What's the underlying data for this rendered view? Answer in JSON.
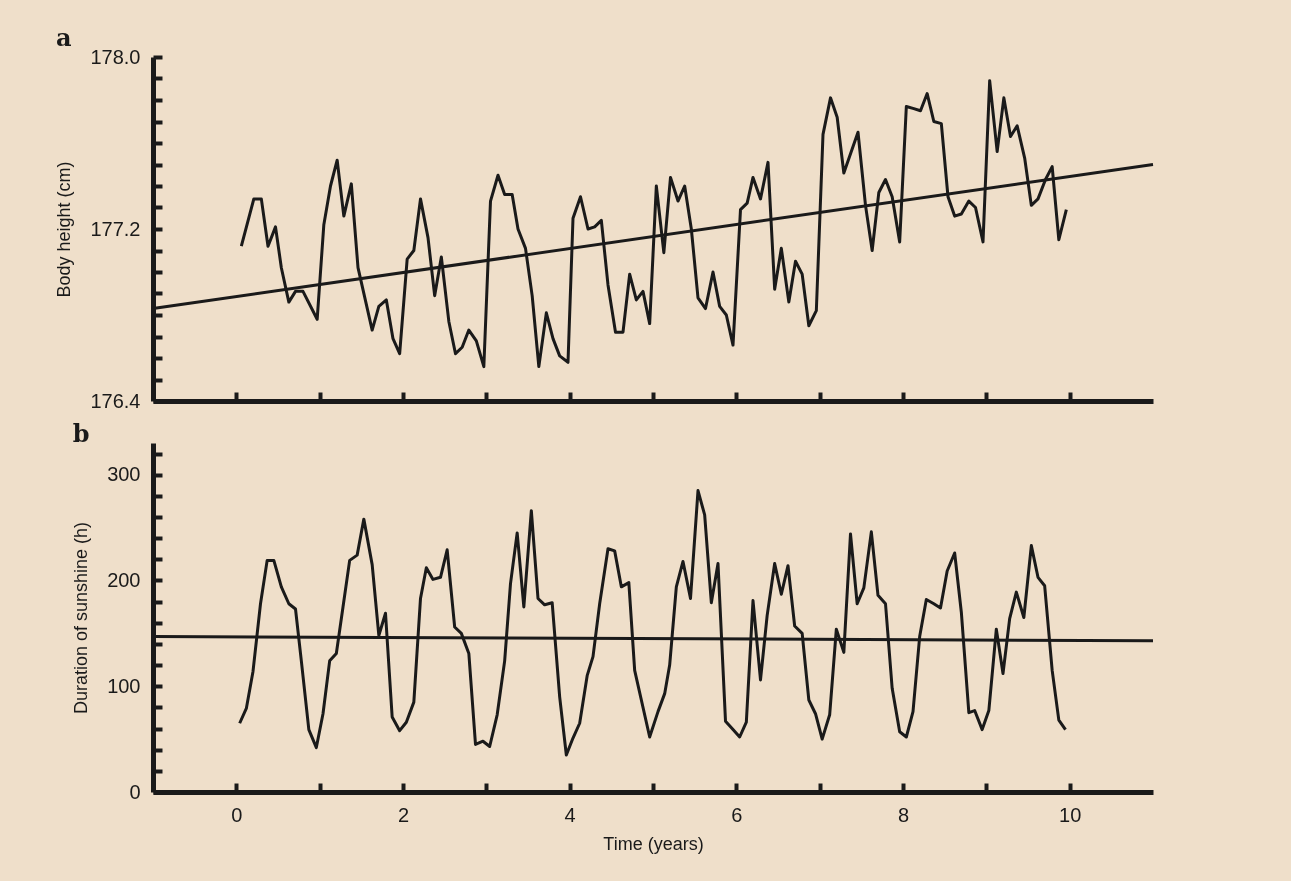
{
  "chart_data": [
    {
      "type": "line",
      "title": "a",
      "ylabel": "Body height  (cm)",
      "xlim": [
        -1,
        11
      ],
      "xticks": [
        0,
        1,
        2,
        3,
        4,
        5,
        6,
        7,
        8,
        9,
        10
      ],
      "ylim": [
        176.4,
        178
      ],
      "yticks": [
        176.4,
        {
          "value": 176.5,
          "label": null
        },
        {
          "value": 176.6,
          "label": null
        },
        {
          "value": 176.7,
          "label": null
        },
        {
          "value": 176.8,
          "label": null
        },
        {
          "value": 176.9,
          "label": null
        },
        {
          "value": 177,
          "label": null
        },
        {
          "value": 177.1,
          "label": null
        },
        177.2,
        {
          "value": 177.3,
          "label": null
        },
        {
          "value": 177.4,
          "label": null
        },
        {
          "value": 177.5,
          "label": null
        },
        {
          "value": 177.6,
          "label": null
        },
        {
          "value": 177.7,
          "label": null
        },
        {
          "value": 177.8,
          "label": null
        },
        {
          "value": 177.9,
          "label": null
        },
        {
          "value": 178,
          "label": "178.0"
        }
      ],
      "tick_labels": "y",
      "series": [
        {
          "color": "#1a1a1a",
          "x": [
            0.06,
            0.21,
            0.3,
            0.38,
            0.47,
            0.54,
            0.63,
            0.71,
            0.8,
            0.97,
            1.05,
            1.13,
            1.21,
            1.29,
            1.38,
            1.46,
            1.63,
            1.71,
            1.8,
            1.88,
            1.96,
            2.05,
            2.13,
            2.21,
            2.3,
            2.38,
            2.46,
            2.55,
            2.63,
            2.71,
            2.79,
            2.88,
            2.97,
            3.05,
            3.14,
            3.22,
            3.31,
            3.38,
            3.47,
            3.55,
            3.63,
            3.72,
            3.8,
            3.88,
            3.98,
            4.04,
            4.13,
            4.22,
            4.3,
            4.38,
            4.46,
            4.55,
            4.64,
            4.72,
            4.8,
            4.88,
            4.96,
            5.04,
            5.13,
            5.21,
            5.3,
            5.38,
            5.46,
            5.54,
            5.63,
            5.72,
            5.8,
            5.88,
            5.96,
            6.05,
            6.13,
            6.2,
            6.29,
            6.38,
            6.46,
            6.54,
            6.63,
            6.71,
            6.79,
            6.87,
            6.96,
            7.04,
            7.13,
            7.21,
            7.29,
            7.46,
            7.55,
            7.63,
            7.71,
            7.79,
            7.87,
            7.96,
            8.04,
            8.13,
            8.21,
            8.29,
            8.37,
            8.46,
            8.54,
            8.62,
            8.7,
            8.79,
            8.87,
            8.96,
            9.04,
            9.13,
            9.21,
            9.29,
            9.37,
            9.46,
            9.54,
            9.62,
            9.71,
            9.79,
            9.87,
            9.96
          ],
          "values": [
            177.12,
            177.34,
            177.34,
            177.12,
            177.21,
            177.02,
            176.86,
            176.91,
            176.91,
            176.78,
            177.22,
            177.4,
            177.52,
            177.26,
            177.41,
            177.02,
            176.73,
            176.84,
            176.87,
            176.69,
            176.62,
            177.06,
            177.1,
            177.34,
            177.16,
            176.89,
            177.07,
            176.77,
            176.62,
            176.65,
            176.73,
            176.68,
            176.56,
            177.33,
            177.45,
            177.36,
            177.36,
            177.2,
            177.11,
            176.89,
            176.56,
            176.81,
            176.69,
            176.61,
            176.58,
            177.25,
            177.35,
            177.2,
            177.21,
            177.24,
            176.94,
            176.72,
            176.72,
            176.99,
            176.87,
            176.91,
            176.76,
            177.4,
            177.09,
            177.44,
            177.33,
            177.4,
            177.2,
            176.88,
            176.83,
            177.0,
            176.84,
            176.8,
            176.66,
            177.29,
            177.32,
            177.44,
            177.34,
            177.51,
            176.92,
            177.11,
            176.86,
            177.05,
            176.99,
            176.75,
            176.82,
            177.64,
            177.81,
            177.72,
            177.46,
            177.65,
            177.31,
            177.1,
            177.37,
            177.43,
            177.35,
            177.14,
            177.77,
            177.76,
            177.75,
            177.83,
            177.7,
            177.69,
            177.35,
            177.26,
            177.27,
            177.33,
            177.3,
            177.14,
            177.89,
            177.56,
            177.81,
            177.63,
            177.68,
            177.53,
            177.31,
            177.34,
            177.43,
            177.49,
            177.15,
            177.29
          ]
        },
        {
          "type": "line",
          "color": "#1a1a1a",
          "x": [
            -1,
            11
          ],
          "values": [
            176.83,
            177.5
          ]
        }
      ]
    },
    {
      "type": "line",
      "title": "b",
      "xlabel": "Time (years)",
      "ylabel": "Duration of sunshine (h)",
      "xlim": [
        -1,
        11
      ],
      "xticks": [
        0,
        {
          "value": 1,
          "label": null
        },
        2,
        {
          "value": 3,
          "label": null
        },
        4,
        {
          "value": 5,
          "label": null
        },
        6,
        {
          "value": 7,
          "label": null
        },
        8,
        {
          "value": 9,
          "label": null
        },
        10
      ],
      "ylim": [
        0,
        330
      ],
      "yticks": [
        0,
        {
          "value": 20,
          "label": null
        },
        {
          "value": 40,
          "label": null
        },
        {
          "value": 60,
          "label": null
        },
        {
          "value": 80,
          "label": null
        },
        100,
        {
          "value": 120,
          "label": null
        },
        {
          "value": 140,
          "label": null
        },
        {
          "value": 160,
          "label": null
        },
        {
          "value": 180,
          "label": null
        },
        200,
        {
          "value": 220,
          "label": null
        },
        {
          "value": 240,
          "label": null
        },
        {
          "value": 260,
          "label": null
        },
        {
          "value": 280,
          "label": null
        },
        300,
        {
          "value": 320,
          "label": null
        }
      ],
      "series": [
        {
          "color": "#1a1a1a",
          "x": [
            0.04,
            0.12,
            0.2,
            0.29,
            0.37,
            0.45,
            0.54,
            0.63,
            0.71,
            0.78,
            0.87,
            0.96,
            1.04,
            1.12,
            1.2,
            1.28,
            1.36,
            1.45,
            1.53,
            1.63,
            1.71,
            1.79,
            1.87,
            1.96,
            2.04,
            2.13,
            2.21,
            2.28,
            2.36,
            2.45,
            2.53,
            2.62,
            2.7,
            2.79,
            2.87,
            2.96,
            3.04,
            3.13,
            3.22,
            3.29,
            3.37,
            3.45,
            3.54,
            3.62,
            3.7,
            3.79,
            3.88,
            3.96,
            4.04,
            4.12,
            4.21,
            4.28,
            4.36,
            4.46,
            4.54,
            4.62,
            4.71,
            4.78,
            4.96,
            5.06,
            5.14,
            5.2,
            5.28,
            5.36,
            5.45,
            5.54,
            5.62,
            5.7,
            5.78,
            5.87,
            5.96,
            6.04,
            6.12,
            6.2,
            6.29,
            6.37,
            6.46,
            6.54,
            6.62,
            6.7,
            6.79,
            6.87,
            6.95,
            7.03,
            7.12,
            7.2,
            7.29,
            7.37,
            7.45,
            7.53,
            7.62,
            7.7,
            7.79,
            7.87,
            7.96,
            8.04,
            8.12,
            8.2,
            8.28,
            8.37,
            8.45,
            8.53,
            8.62,
            8.7,
            8.79,
            8.86,
            8.95,
            9.03,
            9.12,
            9.2,
            9.28,
            9.36,
            9.45,
            9.54,
            9.62,
            9.7,
            9.79,
            9.87,
            9.95
          ],
          "values": [
            65,
            79,
            114,
            178,
            219,
            219,
            194,
            178,
            173,
            124,
            59,
            42,
            74,
            124,
            131,
            175,
            219,
            224,
            258,
            215,
            148,
            169,
            71,
            58,
            66,
            85,
            183,
            212,
            201,
            203,
            229,
            156,
            150,
            131,
            45,
            48,
            43,
            73,
            124,
            197,
            245,
            175,
            266,
            183,
            177,
            179,
            90,
            35,
            51,
            65,
            110,
            128,
            178,
            230,
            228,
            194,
            198,
            115,
            52,
            76,
            93,
            120,
            194,
            218,
            183,
            285,
            262,
            179,
            216,
            67,
            59,
            52,
            66,
            181,
            106,
            167,
            216,
            187,
            214,
            157,
            150,
            87,
            74,
            50,
            73,
            154,
            132,
            244,
            178,
            193,
            246,
            186,
            178,
            98,
            57,
            52,
            76,
            147,
            182,
            178,
            174,
            209,
            226,
            170,
            75,
            77,
            59,
            77,
            154,
            112,
            164,
            189,
            165,
            233,
            203,
            195,
            115,
            68,
            59
          ]
        },
        {
          "type": "line",
          "color": "#1a1a1a",
          "x": [
            -1,
            11
          ],
          "values": [
            147,
            143
          ]
        }
      ]
    }
  ]
}
